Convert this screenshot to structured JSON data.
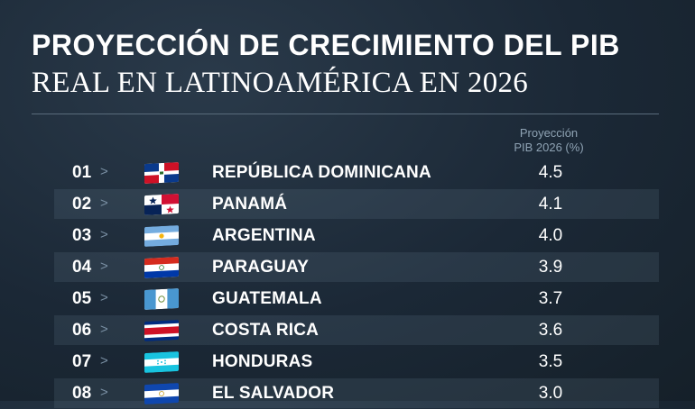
{
  "title_line1": "PROYECCIÓN DE CRECIMIENTO DEL PIB",
  "title_line2": "REAL EN LATINOAMÉRICA EN 2026",
  "column_header_line1": "Proyección",
  "column_header_line2": "PIB 2026 (%)",
  "chevron": ">",
  "chart_data": {
    "type": "table",
    "title": "PROYECCIÓN DE CRECIMIENTO DEL PIB REAL EN LATINOAMÉRICA EN 2026",
    "columns": [
      "",
      "",
      "Proyección PIB 2026 (%)"
    ],
    "rows": [
      {
        "rank": "01",
        "country": "REPÚBLICA DOMINICANA",
        "flag": "dominican-republic",
        "value": "4.5"
      },
      {
        "rank": "02",
        "country": "PANAMÁ",
        "flag": "panama",
        "value": "4.1"
      },
      {
        "rank": "03",
        "country": "ARGENTINA",
        "flag": "argentina",
        "value": "4.0"
      },
      {
        "rank": "04",
        "country": "PARAGUAY",
        "flag": "paraguay",
        "value": "3.9"
      },
      {
        "rank": "05",
        "country": "GUATEMALA",
        "flag": "guatemala",
        "value": "3.7"
      },
      {
        "rank": "06",
        "country": "COSTA RICA",
        "flag": "costa-rica",
        "value": "3.6"
      },
      {
        "rank": "07",
        "country": "HONDURAS",
        "flag": "honduras",
        "value": "3.5"
      },
      {
        "rank": "08",
        "country": "EL SALVADOR",
        "flag": "el-salvador",
        "value": "3.0"
      }
    ]
  }
}
